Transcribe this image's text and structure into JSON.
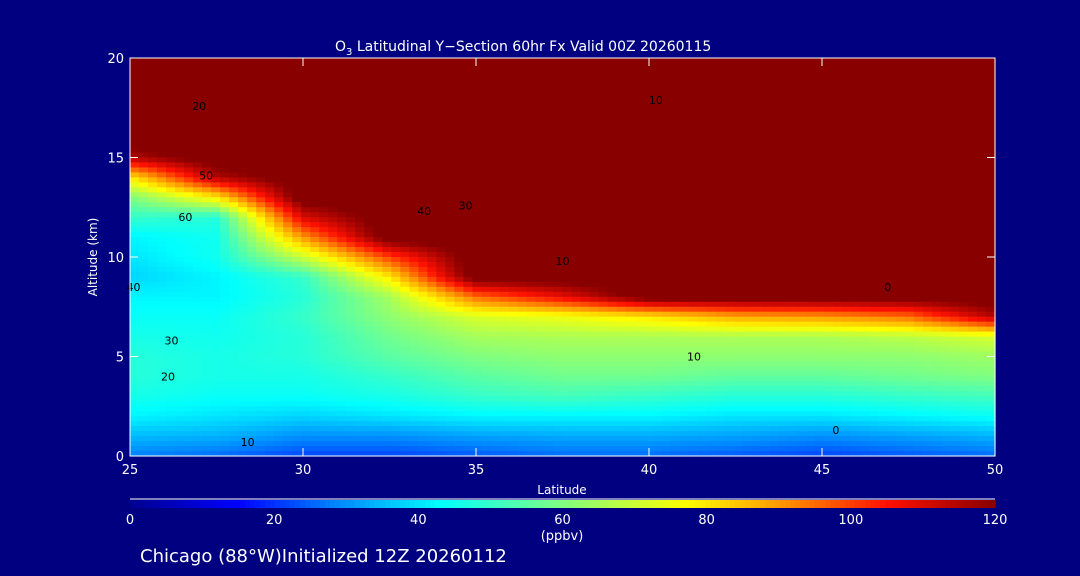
{
  "chart_data": {
    "type": "heatmap",
    "title_main": "O",
    "title_sub": "3",
    "title_rest": " Latitudinal Y−Section 60hr  Fx Valid 00Z 20260115",
    "xlabel": "Latitude",
    "ylabel": "Altitude (km)",
    "xlim": [
      25,
      50
    ],
    "ylim": [
      0,
      20
    ],
    "x_ticks": [
      "25",
      "30",
      "35",
      "40",
      "45",
      "50"
    ],
    "y_ticks": [
      "0",
      "5",
      "10",
      "15",
      "20"
    ],
    "grid_lat": [
      25,
      27.5,
      30,
      32.5,
      35,
      37.5,
      40,
      42.5,
      45,
      47.5,
      50
    ],
    "grid_alt": [
      0,
      1,
      2,
      3,
      4,
      5,
      6,
      7,
      8,
      9,
      10,
      11,
      12,
      13,
      14,
      15,
      16,
      17,
      18,
      19,
      20
    ],
    "values": [
      [
        28,
        26,
        22,
        22,
        24,
        26,
        26,
        24,
        22,
        24,
        26
      ],
      [
        35,
        34,
        30,
        30,
        32,
        33,
        33,
        32,
        30,
        32,
        34
      ],
      [
        42,
        40,
        38,
        40,
        42,
        42,
        42,
        40,
        40,
        42,
        44
      ],
      [
        46,
        44,
        44,
        46,
        50,
        52,
        50,
        48,
        48,
        50,
        52
      ],
      [
        48,
        46,
        46,
        50,
        55,
        58,
        58,
        56,
        56,
        58,
        60
      ],
      [
        48,
        46,
        48,
        55,
        60,
        62,
        62,
        62,
        62,
        62,
        64
      ],
      [
        46,
        45,
        48,
        58,
        65,
        66,
        66,
        66,
        66,
        68,
        72
      ],
      [
        44,
        44,
        50,
        62,
        72,
        75,
        80,
        88,
        90,
        95,
        115
      ],
      [
        42,
        42,
        48,
        65,
        95,
        108,
        125,
        125,
        125,
        125,
        125
      ],
      [
        38,
        42,
        50,
        80,
        125,
        125,
        125,
        125,
        125,
        125,
        125
      ],
      [
        40,
        45,
        70,
        100,
        125,
        125,
        125,
        125,
        125,
        125,
        125
      ],
      [
        42,
        45,
        90,
        125,
        125,
        125,
        125,
        125,
        125,
        125,
        125
      ],
      [
        50,
        48,
        110,
        125,
        125,
        125,
        125,
        125,
        125,
        125,
        125
      ],
      [
        60,
        80,
        125,
        125,
        125,
        125,
        125,
        125,
        125,
        125,
        125
      ],
      [
        80,
        115,
        125,
        125,
        125,
        125,
        125,
        125,
        125,
        125,
        125
      ],
      [
        115,
        125,
        125,
        125,
        125,
        125,
        125,
        125,
        125,
        125,
        125
      ],
      [
        125,
        125,
        125,
        125,
        125,
        125,
        125,
        125,
        125,
        125,
        125
      ],
      [
        125,
        125,
        125,
        125,
        125,
        125,
        125,
        125,
        125,
        125,
        125
      ],
      [
        125,
        125,
        125,
        125,
        125,
        125,
        125,
        125,
        125,
        125,
        125
      ],
      [
        125,
        125,
        125,
        125,
        125,
        125,
        125,
        125,
        125,
        125,
        125
      ],
      [
        125,
        125,
        125,
        125,
        125,
        125,
        125,
        125,
        125,
        125,
        125
      ]
    ],
    "contour_labels": [
      {
        "text": "10",
        "lat": 40.2,
        "alt": 17.9
      },
      {
        "text": "20",
        "lat": 27.0,
        "alt": 17.6
      },
      {
        "text": "50",
        "lat": 27.2,
        "alt": 14.1
      },
      {
        "text": "60",
        "lat": 26.6,
        "alt": 12.0
      },
      {
        "text": "40",
        "lat": 33.5,
        "alt": 12.3
      },
      {
        "text": "30",
        "lat": 34.7,
        "alt": 12.6
      },
      {
        "text": "10",
        "lat": 37.5,
        "alt": 9.8
      },
      {
        "text": "30",
        "lat": 26.2,
        "alt": 5.8
      },
      {
        "text": "20",
        "lat": 26.1,
        "alt": 4.0
      },
      {
        "text": "10",
        "lat": 28.4,
        "alt": 0.7
      },
      {
        "text": "40",
        "lat": 25.1,
        "alt": 8.5
      },
      {
        "text": "10",
        "lat": 41.3,
        "alt": 5.0
      },
      {
        "text": "0",
        "lat": 45.4,
        "alt": 1.3
      },
      {
        "text": "0",
        "lat": 46.9,
        "alt": 8.5
      }
    ],
    "colorbar": {
      "ticks": [
        "0",
        "20",
        "40",
        "60",
        "80",
        "100",
        "120"
      ],
      "range": [
        0,
        120
      ],
      "unit": "(ppbv)",
      "stops": [
        {
          "v": 0,
          "c": "#000090"
        },
        {
          "v": 15,
          "c": "#0000ff"
        },
        {
          "v": 28,
          "c": "#0080ff"
        },
        {
          "v": 43,
          "c": "#00ffff"
        },
        {
          "v": 60,
          "c": "#80ff80"
        },
        {
          "v": 77,
          "c": "#ffff00"
        },
        {
          "v": 90,
          "c": "#ff9900"
        },
        {
          "v": 105,
          "c": "#ff1000"
        },
        {
          "v": 120,
          "c": "#880000"
        }
      ]
    }
  },
  "footer": "Chicago (88°W)Initialized 12Z 20260112"
}
